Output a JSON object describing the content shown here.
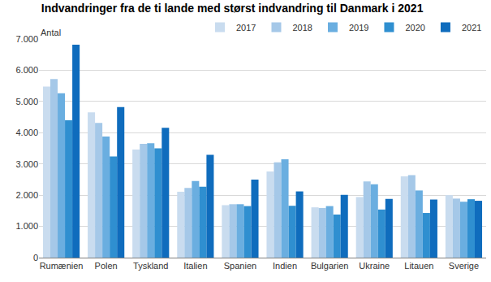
{
  "chart_data": {
    "type": "bar",
    "title": "Indvandringer fra de ti lande med størst indvandring til Danmark i 2021",
    "ylabel": "Antal",
    "categories": [
      "Rumænien",
      "Polen",
      "Tyskland",
      "Italien",
      "Spanien",
      "Indien",
      "Bulgarien",
      "Ukraine",
      "Litauen",
      "Sverige"
    ],
    "series": [
      {
        "name": "2017",
        "color": "#c9dcef",
        "values": [
          5480,
          4650,
          3460,
          2110,
          1680,
          2760,
          1610,
          1940,
          2600,
          2000
        ]
      },
      {
        "name": "2018",
        "color": "#a5c8e8",
        "values": [
          5720,
          4310,
          3640,
          2230,
          1710,
          3050,
          1590,
          2440,
          2640,
          1890
        ]
      },
      {
        "name": "2019",
        "color": "#6aaee0",
        "values": [
          5260,
          3880,
          3660,
          2450,
          1710,
          3150,
          1650,
          2350,
          2150,
          1790
        ]
      },
      {
        "name": "2020",
        "color": "#2f8fd0",
        "values": [
          4400,
          3240,
          3500,
          2270,
          1650,
          1660,
          1380,
          1540,
          1430,
          1870
        ]
      },
      {
        "name": "2021",
        "color": "#0f6cbd",
        "values": [
          6820,
          4820,
          4160,
          3290,
          2500,
          2120,
          2010,
          1880,
          1860,
          1820
        ]
      }
    ],
    "ylim": [
      0,
      7000
    ],
    "yticks": [
      0,
      {
        "value": 1000,
        "label": "1.000"
      },
      {
        "value": 2000,
        "label": "2.000"
      },
      {
        "value": 3000,
        "label": "3.000"
      },
      {
        "value": 4000,
        "label": "4.000"
      },
      {
        "value": 5000,
        "label": "5.000"
      },
      {
        "value": 6000,
        "label": "6.000"
      },
      {
        "value": 7000,
        "label": "7.000"
      }
    ],
    "grid": true,
    "legend": "top-right"
  }
}
